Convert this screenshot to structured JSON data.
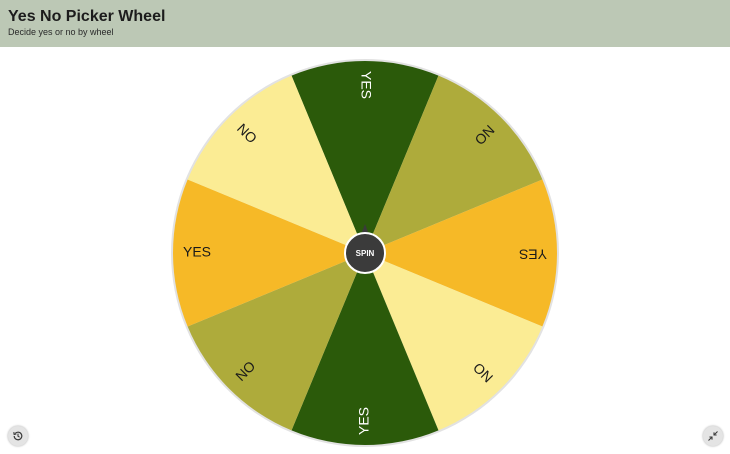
{
  "header": {
    "title": "Yes No Picker Wheel",
    "subtitle": "Decide yes or no by wheel"
  },
  "wheel": {
    "center_label": "SPIN",
    "segments": [
      {
        "label": "YES",
        "color": "#2b5a0a"
      },
      {
        "label": "NO",
        "color": "#aeab3b"
      },
      {
        "label": "YES",
        "color": "#f6b927"
      },
      {
        "label": "NO",
        "color": "#fbec94"
      },
      {
        "label": "YES",
        "color": "#2b5a0a"
      },
      {
        "label": "NO",
        "color": "#aeab3b"
      },
      {
        "label": "YES",
        "color": "#f6b927"
      },
      {
        "label": "NO",
        "color": "#fbec94"
      }
    ]
  },
  "controls": {
    "history_icon": "history-icon",
    "fullscreen_icon": "collapse-icon"
  }
}
